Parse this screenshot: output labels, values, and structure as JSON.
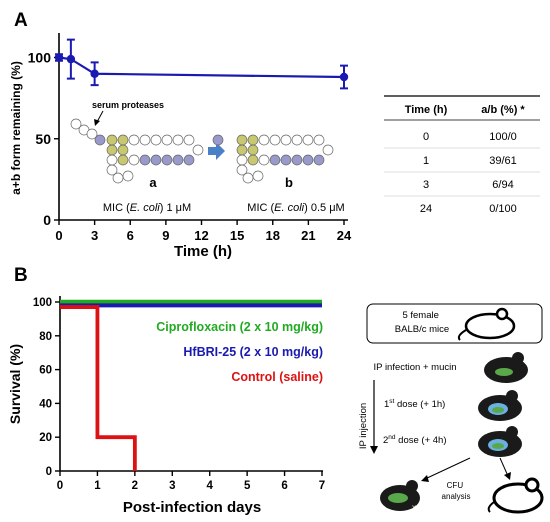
{
  "panel_a": {
    "label": "A",
    "annotation": "serum proteases",
    "form_a_label": "a",
    "form_b_label": "b",
    "mic_a": "MIC (E. coli) 1 μM",
    "mic_b": "MIC (E. coli) 0.5 μM",
    "table": {
      "headers": [
        "Time (h)",
        "a/b (%) *"
      ],
      "rows": [
        [
          "0",
          "100/0"
        ],
        [
          "1",
          "39/61"
        ],
        [
          "3",
          "6/94"
        ],
        [
          "24",
          "0/100"
        ]
      ]
    }
  },
  "panel_b": {
    "label": "B",
    "legend": [
      {
        "text": "Ciprofloxacin (2 x 10 mg/kg)",
        "color": "#22aa22"
      },
      {
        "text": "HfBRI-25 (2 x 10 mg/kg)",
        "color": "#1a1ab0"
      },
      {
        "text": "Control (saline)",
        "color": "#dd1111"
      }
    ]
  },
  "schematic": {
    "mice_box": "5 female BALB/c mice",
    "infection": "IP infection + mucin",
    "dose1": "1st dose (+ 1h)",
    "dose2": "2nd dose (+ 4h)",
    "route": "IP injection",
    "cfu": "CFU analysis"
  },
  "colors": {
    "blue_line": "#1a1ab0",
    "peptide_residue": "#9999cc",
    "cysteine": "#c8c870"
  },
  "chart_data": [
    {
      "type": "line",
      "xlabel": "Time (h)",
      "ylabel": "a+b form remaining (%)",
      "xlim": [
        0,
        24
      ],
      "ylim": [
        0,
        120
      ],
      "xticks": [
        0,
        3,
        6,
        9,
        12,
        15,
        18,
        21,
        24
      ],
      "yticks": [
        0,
        50,
        100
      ],
      "grid": false,
      "series": [
        {
          "x": [
            0,
            1,
            3,
            24
          ],
          "y": [
            100,
            99,
            90,
            88
          ],
          "err": [
            2,
            12,
            7,
            7
          ],
          "color": "#1a1ab0"
        }
      ]
    },
    {
      "type": "line",
      "xlabel": "Post-infection days",
      "ylabel": "Survival (%)",
      "xlim": [
        0,
        7
      ],
      "ylim": [
        0,
        100
      ],
      "xticks": [
        0,
        1,
        2,
        3,
        4,
        5,
        6,
        7
      ],
      "yticks": [
        0,
        20,
        40,
        60,
        80,
        100
      ],
      "grid": false,
      "series": [
        {
          "name": "Ciprofloxacin (2 x 10 mg/kg)",
          "color": "#22aa22",
          "x": [
            0,
            7
          ],
          "y": [
            100,
            100
          ]
        },
        {
          "name": "HfBRI-25 (2 x 10 mg/kg)",
          "color": "#1a1ab0",
          "x": [
            0,
            7
          ],
          "y": [
            98,
            98
          ]
        },
        {
          "name": "Control (saline)",
          "color": "#dd1111",
          "x": [
            0,
            1,
            1,
            2,
            2
          ],
          "y": [
            97,
            97,
            20,
            20,
            0
          ]
        }
      ]
    }
  ]
}
